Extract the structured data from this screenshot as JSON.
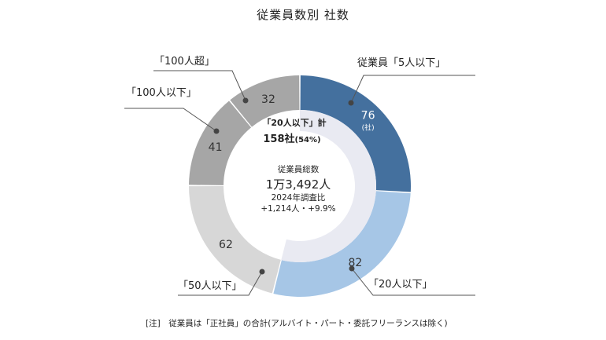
{
  "chart_data": {
    "type": "pie",
    "title": "従業員数別 社数",
    "unit": "(社)",
    "slices": [
      {
        "label": "従業員「5人以下」",
        "value": 76,
        "color": "#44709e"
      },
      {
        "label": "「20人以下」",
        "value": 82,
        "color": "#a6c6e6"
      },
      {
        "label": "「50人以下」",
        "value": 62,
        "color": "#d7d7d7"
      },
      {
        "label": "「100人以下」",
        "value": 41,
        "color": "#a6a6a6"
      },
      {
        "label": "「100人超」",
        "value": 32,
        "color": "#a6a6a6"
      }
    ],
    "inner_ring": {
      "heading": "「20人以下」計",
      "value_text": "158社",
      "percent_text": "(54%)",
      "color": "#e9eaf2"
    },
    "center": {
      "line1": "従業員総数",
      "line2": "1万3,492人",
      "line3": "2024年調査比",
      "line4": "+1,214人・+9.9%"
    }
  },
  "note": "[注]　従業員は「正社員」の合計(アルバイト・パート・委託フリーランスは除く)"
}
